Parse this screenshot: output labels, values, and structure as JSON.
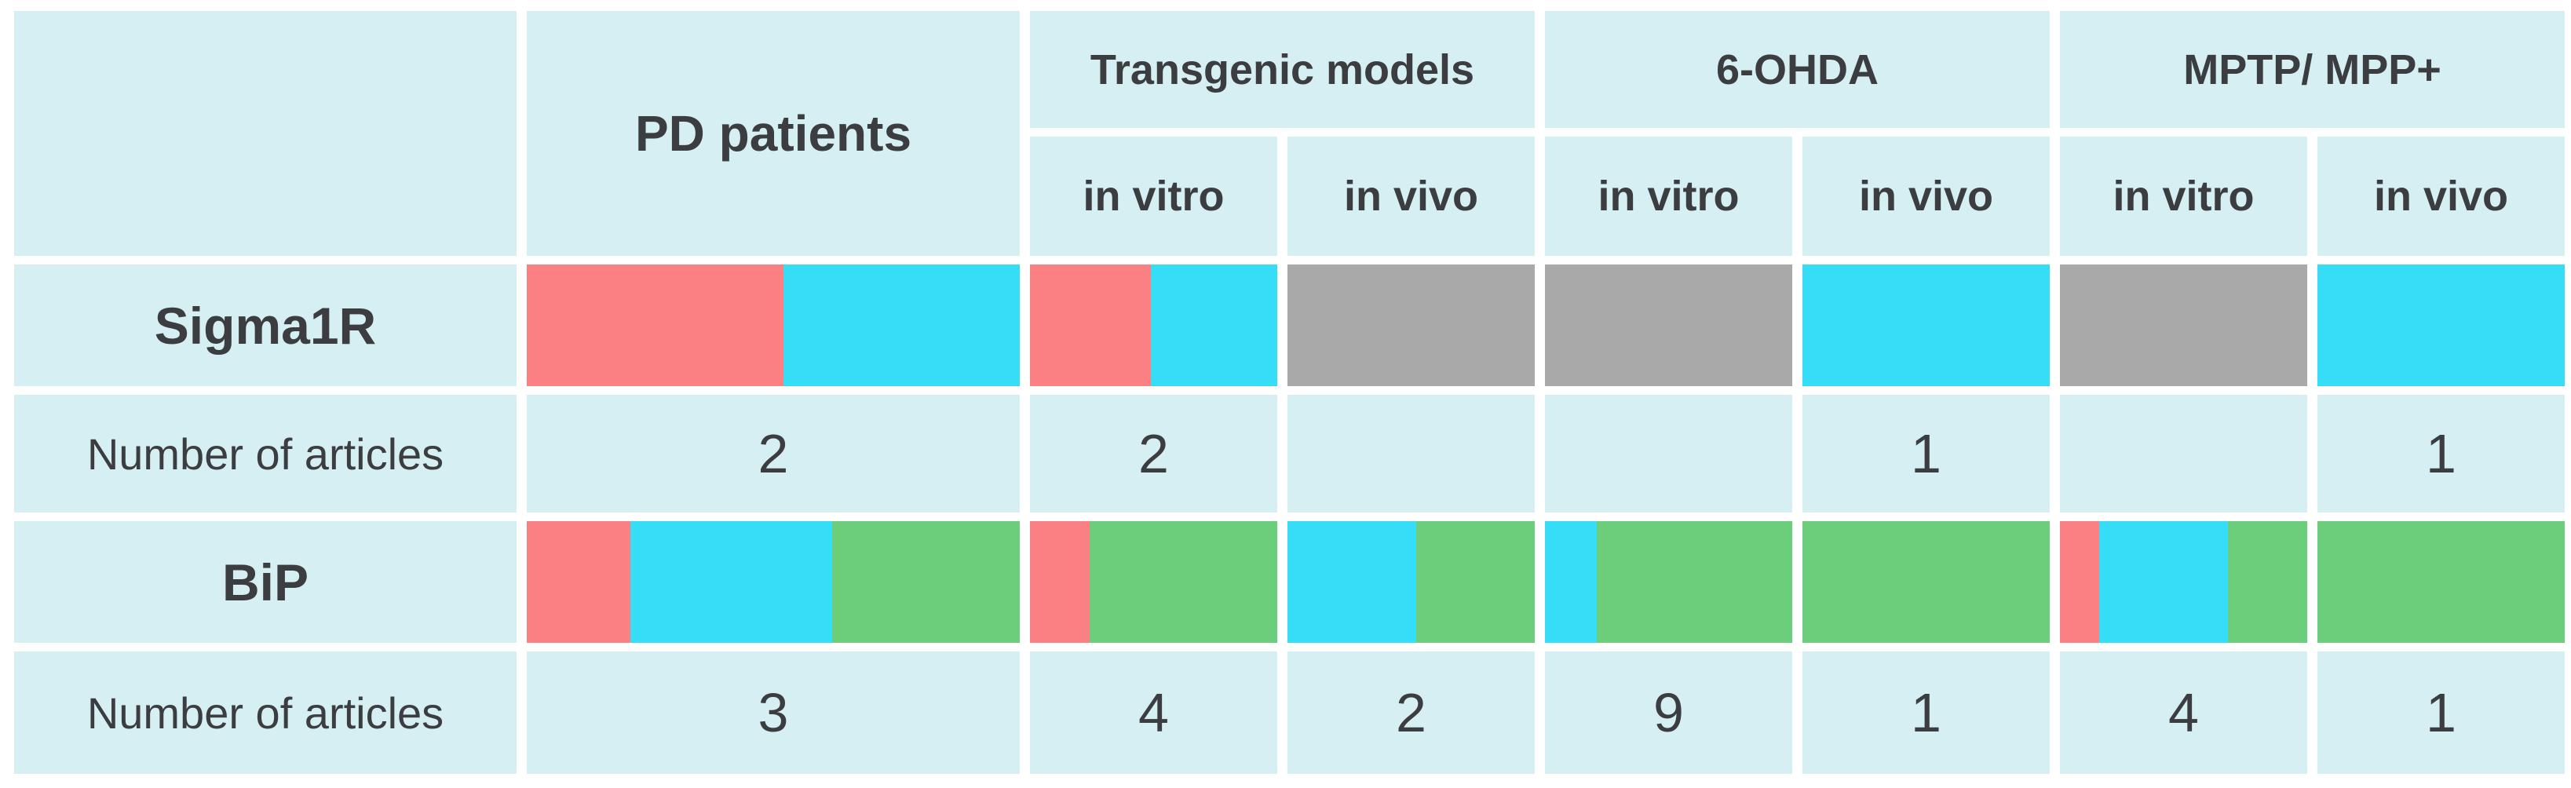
{
  "colors": {
    "red": "#fb8084",
    "cyan": "#36ddf6",
    "green": "#6cce7a",
    "gray": "#a9a9a9",
    "cell_bg": "#d5eff2",
    "text": "#3b3d40",
    "gap": "#ffffff"
  },
  "header": {
    "corner_label": "",
    "pd_label": "PD patients",
    "groups": [
      {
        "label": "Transgenic models",
        "sub": [
          "in vitro",
          "in vivo"
        ]
      },
      {
        "label": "6-OHDA",
        "sub": [
          "in vitro",
          "in vivo"
        ]
      },
      {
        "label": "MPTP/ MPP+",
        "sub": [
          "in vitro",
          "in vivo"
        ]
      }
    ]
  },
  "chart_data": {
    "type": "table",
    "title": "",
    "columns": [
      "",
      "PD patients",
      "Transgenic models in vitro",
      "Transgenic models in vivo",
      "6-OHDA in vitro",
      "6-OHDA in vivo",
      "MPTP/ MPP+ in vitro",
      "MPTP/ MPP+ in vivo"
    ],
    "legend": "none (color-coded stacked bars: red, cyan, green, gray)",
    "rows": [
      {
        "label": "Sigma1R",
        "type": "bars",
        "cells": [
          {
            "segments": [
              {
                "color": "red",
                "frac": 0.52
              },
              {
                "color": "cyan",
                "frac": 0.48
              }
            ]
          },
          {
            "segments": [
              {
                "color": "red",
                "frac": 0.49
              },
              {
                "color": "cyan",
                "frac": 0.51
              }
            ]
          },
          {
            "segments": [
              {
                "color": "gray",
                "frac": 1.0
              }
            ]
          },
          {
            "segments": [
              {
                "color": "gray",
                "frac": 1.0
              }
            ]
          },
          {
            "segments": [
              {
                "color": "cyan",
                "frac": 1.0
              }
            ]
          },
          {
            "segments": [
              {
                "color": "gray",
                "frac": 1.0
              }
            ]
          },
          {
            "segments": [
              {
                "color": "cyan",
                "frac": 1.0
              }
            ]
          }
        ]
      },
      {
        "label": "Number of articles",
        "type": "values",
        "cells": [
          "2",
          "2",
          "",
          "",
          "1",
          "",
          "1"
        ]
      },
      {
        "label": "BiP",
        "type": "bars",
        "cells": [
          {
            "segments": [
              {
                "color": "red",
                "frac": 0.21
              },
              {
                "color": "cyan",
                "frac": 0.41
              },
              {
                "color": "green",
                "frac": 0.38
              }
            ]
          },
          {
            "segments": [
              {
                "color": "red",
                "frac": 0.24
              },
              {
                "color": "green",
                "frac": 0.76
              }
            ]
          },
          {
            "segments": [
              {
                "color": "cyan",
                "frac": 0.52
              },
              {
                "color": "green",
                "frac": 0.48
              }
            ]
          },
          {
            "segments": [
              {
                "color": "cyan",
                "frac": 0.21
              },
              {
                "color": "green",
                "frac": 0.79
              }
            ]
          },
          {
            "segments": [
              {
                "color": "green",
                "frac": 1.0
              }
            ]
          },
          {
            "segments": [
              {
                "color": "red",
                "frac": 0.16
              },
              {
                "color": "cyan",
                "frac": 0.52
              },
              {
                "color": "green",
                "frac": 0.32
              }
            ]
          },
          {
            "segments": [
              {
                "color": "green",
                "frac": 1.0
              }
            ]
          }
        ]
      },
      {
        "label": "Number of articles",
        "type": "values",
        "cells": [
          "3",
          "4",
          "2",
          "9",
          "1",
          "4",
          "1"
        ]
      }
    ]
  }
}
